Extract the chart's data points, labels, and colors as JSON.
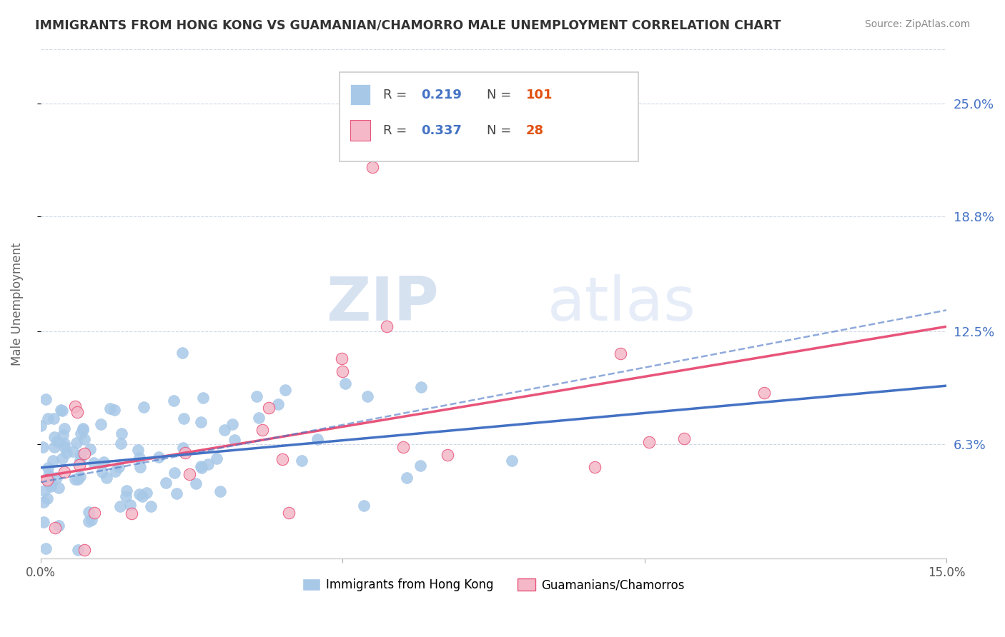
{
  "title": "IMMIGRANTS FROM HONG KONG VS GUAMANIAN/CHAMORRO MALE UNEMPLOYMENT CORRELATION CHART",
  "source": "Source: ZipAtlas.com",
  "xlabel_label": "Immigrants from Hong Kong",
  "ylabel_label": "Male Unemployment",
  "guamanian_label": "Guamanians/Chamorros",
  "xlim": [
    0.0,
    0.15
  ],
  "ylim": [
    0.0,
    0.28
  ],
  "yticks": [
    0.063,
    0.125,
    0.188,
    0.25
  ],
  "ytick_labels": [
    "6.3%",
    "12.5%",
    "18.8%",
    "25.0%"
  ],
  "xticks": [
    0.0,
    0.05,
    0.1,
    0.15
  ],
  "xtick_labels": [
    "0.0%",
    "",
    "",
    "15.0%"
  ],
  "R_blue": 0.219,
  "N_blue": 101,
  "R_pink": 0.337,
  "N_pink": 28,
  "blue_color": "#a8c8e8",
  "pink_color": "#f4b8c8",
  "blue_line_color": "#4472c4",
  "pink_line_color": "#e8547a",
  "axis_color": "#aaaaaa",
  "grid_color": "#d0d8e8",
  "watermark_zip": "ZIP",
  "watermark_atlas": "atlas",
  "watermark_color": "#d8e4f4",
  "legend_R_color": "#4472c4",
  "legend_N_color": "#e05010",
  "title_color": "#333333",
  "source_color": "#888888",
  "ylabel_color": "#666666",
  "blue_intercept": 0.05,
  "blue_slope": 0.3,
  "pink_intercept": 0.045,
  "pink_slope": 0.55,
  "blue_ci_intercept": 0.042,
  "blue_ci_slope": 0.63
}
